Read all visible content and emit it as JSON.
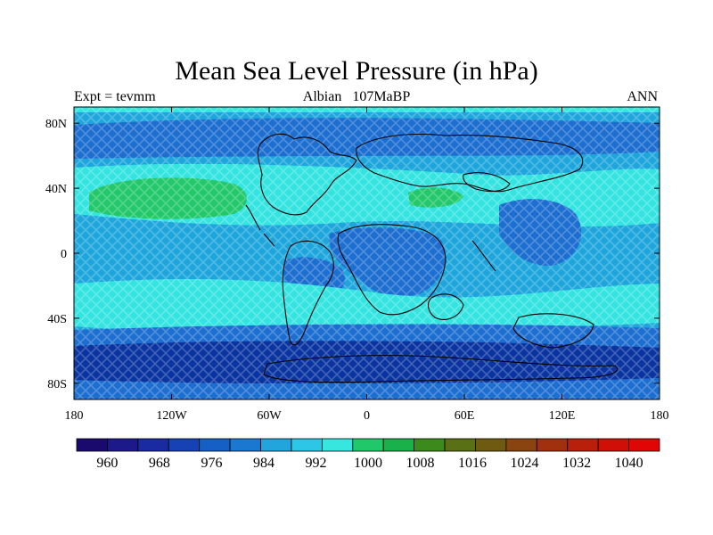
{
  "title": "Mean Sea Level Pressure (in hPa)",
  "subtitle_left": "Expt = tevmm",
  "subtitle_center_a": "Albian",
  "subtitle_center_b": "107MaBP",
  "subtitle_right": "ANN",
  "lon_ticks": [
    "180",
    "120W",
    "60W",
    "0",
    "60E",
    "120E",
    "180"
  ],
  "lat_ticks": [
    "80N",
    "40N",
    "0",
    "40S",
    "80S"
  ],
  "colorbar": {
    "labels": [
      "960",
      "968",
      "976",
      "984",
      "992",
      "1000",
      "1008",
      "1016",
      "1024",
      "1032",
      "1040"
    ],
    "colors": [
      "#1a0a6e",
      "#1c1a8a",
      "#1a2aa0",
      "#1642b4",
      "#1560c4",
      "#1a78d0",
      "#22a4dc",
      "#2ec6e6",
      "#38e6e0",
      "#21c86a",
      "#1ab04a",
      "#3c8a1c",
      "#5a7014",
      "#6e5a10",
      "#8a4410",
      "#a0300e",
      "#b8200c",
      "#d01008",
      "#e00606"
    ]
  },
  "map_colors": {
    "deep_low": "#0a34a0",
    "low": "#1c6ed0",
    "mid": "#1ea6dc",
    "high": "#34e4e0",
    "very_high": "#22c86a",
    "coast": "#000000"
  }
}
